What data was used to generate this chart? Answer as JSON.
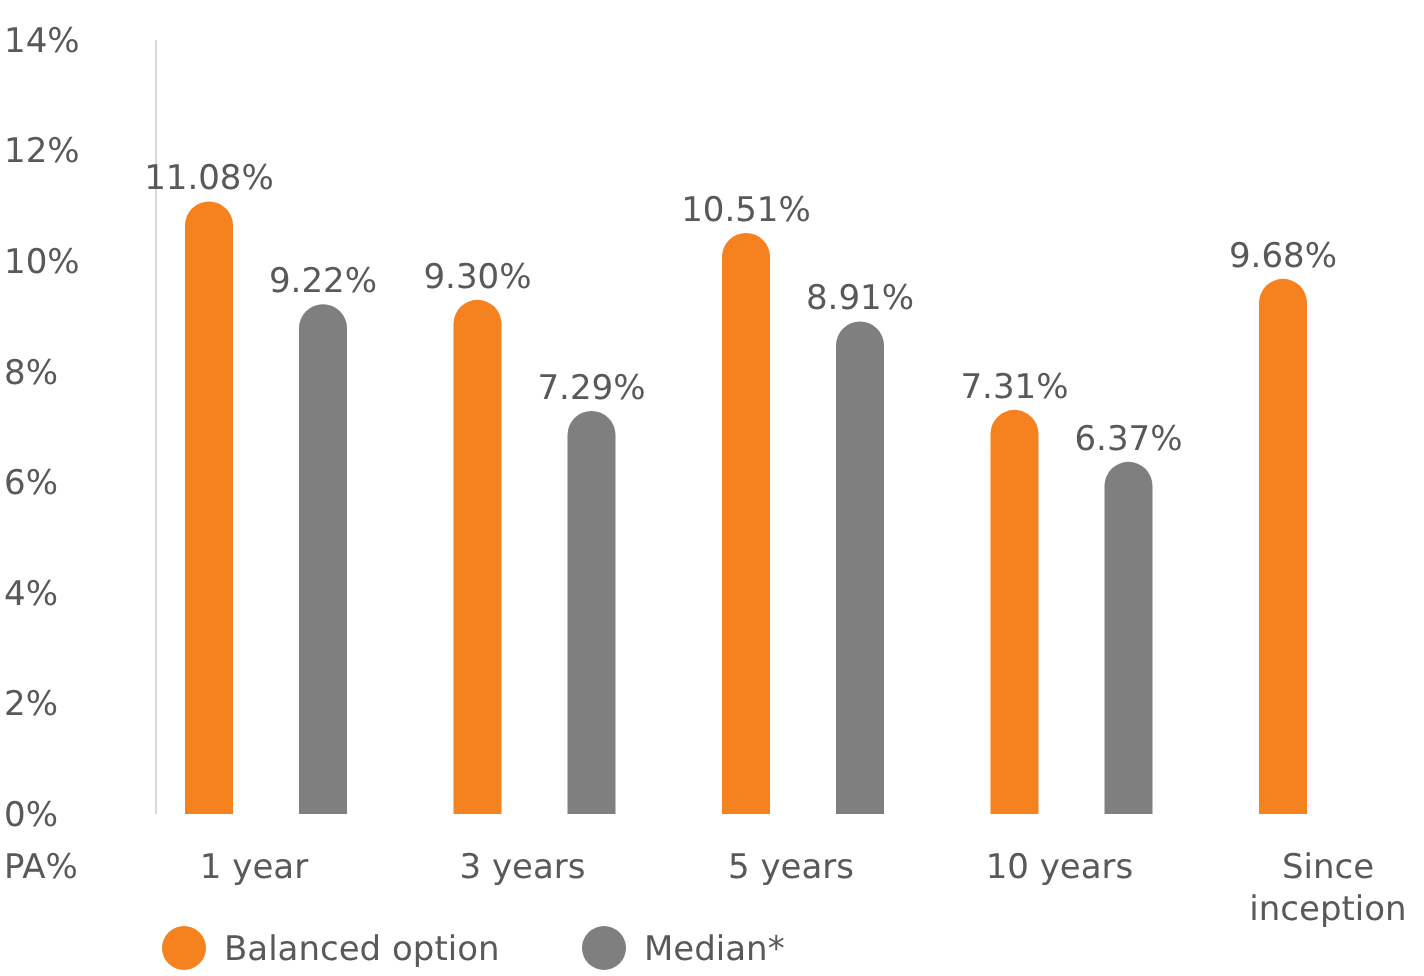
{
  "chart_data": {
    "type": "bar",
    "ylabel": "PA%",
    "categories": [
      "1 year",
      "3 years",
      "5 years",
      "10 years",
      "Since inception"
    ],
    "series": [
      {
        "name": "Balanced option",
        "color": "#f5821f",
        "values": [
          11.08,
          9.3,
          10.51,
          7.31,
          9.68
        ],
        "value_labels": [
          "11.08%",
          "9.30%",
          "10.51%",
          "7.31%",
          "9.68%"
        ]
      },
      {
        "name": "Median*",
        "color": "#7f7f7f",
        "values": [
          9.22,
          7.29,
          8.91,
          6.37,
          null
        ],
        "value_labels": [
          "9.22%",
          "7.29%",
          "8.91%",
          "6.37%",
          null
        ]
      }
    ],
    "ylim": [
      0,
      14
    ],
    "yticks": [
      {
        "value": 0,
        "label": "0%"
      },
      {
        "value": 2,
        "label": "2%"
      },
      {
        "value": 4,
        "label": "4%"
      },
      {
        "value": 6,
        "label": "6%"
      },
      {
        "value": 8,
        "label": "8%"
      },
      {
        "value": 10,
        "label": "10%"
      },
      {
        "value": 12,
        "label": "12%"
      },
      {
        "value": 14,
        "label": "14%"
      }
    ],
    "grid": false,
    "legend": "bottom"
  }
}
